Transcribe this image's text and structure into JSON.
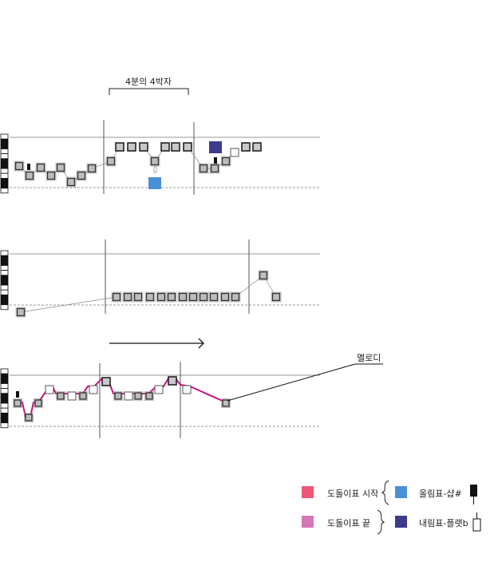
{
  "header": {
    "bracket_label": "4분의 4박자"
  },
  "annotation": {
    "melody_label": "멜로디"
  },
  "legend": {
    "items": [
      {
        "label": "도돌이표 시작",
        "color": "#ee5677",
        "symbol": "brace-open-icon"
      },
      {
        "label": "올림표-샵#",
        "color": "#4a90d9",
        "symbol": "sharp-block-icon"
      },
      {
        "label": "도돌이표 끝",
        "color": "#d877b5",
        "symbol": "brace-close-icon"
      },
      {
        "label": "내림표-플랫b",
        "color": "#3d3b8c",
        "symbol": "flat-block-icon"
      }
    ]
  },
  "colors": {
    "melody_line": "#c4137a",
    "staff_line": "#999999",
    "note_fill": "#bdbdbd",
    "note_border": "#333333",
    "sharp_block": "#4a90d9",
    "flat_block": "#3d3b8c"
  }
}
